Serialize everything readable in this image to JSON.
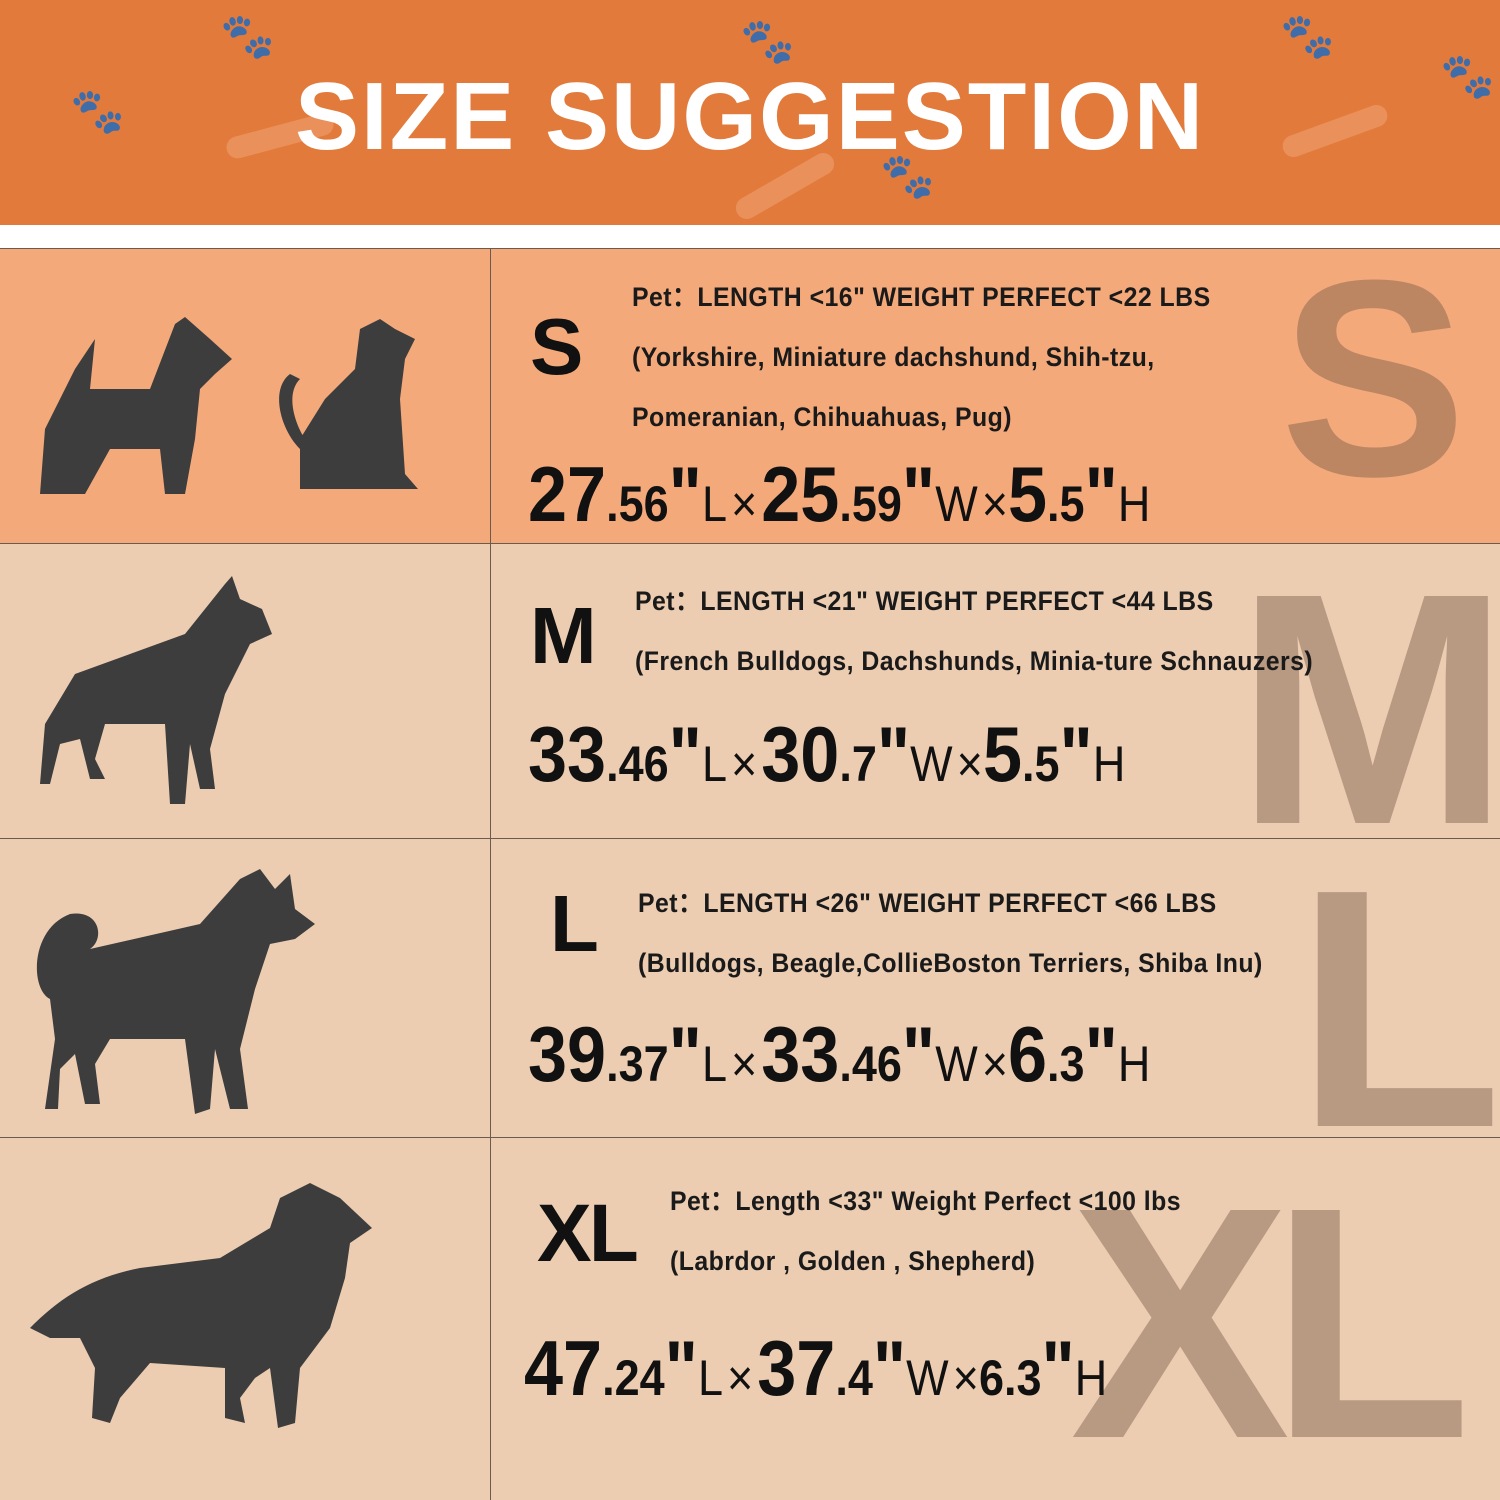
{
  "title": "SIZE SUGGESTION",
  "colors": {
    "header": "#E27A3C",
    "row_small": "#F4A97B",
    "row_other": "#EDCDB2",
    "silhouette": "#3d3d3d"
  },
  "sizes": [
    {
      "size": "S",
      "info": "Pet：LENGTH <16\"  WEIGHT PERFECT <22 LBS",
      "breeds": [
        "(Yorkshire, Miniature dachshund, Shih-tzu,",
        "Pomeranian, Chihuahuas, Pug)"
      ],
      "pets": [
        "dog-silhouette",
        "cat-silhouette"
      ],
      "dims": {
        "l_int": "27",
        "l_dec": ".56",
        "w_int": "25",
        "w_dec": ".59",
        "h_int": "5",
        "h_dec": ".5",
        "inch": "\"",
        "l": "L",
        "w": "W",
        "h": "H",
        "x": "×"
      }
    },
    {
      "size": "M",
      "info": "Pet：LENGTH <21\"  WEIGHT PERFECT <44 LBS",
      "breeds": [
        "(French Bulldogs, Dachshunds, Minia-ture Schnauzers)"
      ],
      "pets": [
        "dog-silhouette"
      ],
      "dims": {
        "l_int": "33",
        "l_dec": ".46",
        "w_int": "30",
        "w_dec": ".7",
        "h_int": "5",
        "h_dec": ".5",
        "inch": "\"",
        "l": "L",
        "w": "W",
        "h": "H",
        "x": "×"
      }
    },
    {
      "size": "L",
      "info": "Pet：LENGTH <26\" WEIGHT PERFECT <66 LBS",
      "breeds": [
        "(Bulldogs, Beagle,CollieBoston Terriers, Shiba Inu)"
      ],
      "pets": [
        "dog-silhouette"
      ],
      "dims": {
        "l_int": "39",
        "l_dec": ".37",
        "w_int": "33",
        "w_dec": ".46",
        "h_int": "6",
        "h_dec": ".3",
        "inch": "\"",
        "l": "L",
        "w": "W",
        "h": "H",
        "x": "×"
      }
    },
    {
      "size": "XL",
      "info": "Pet：Length <33\"  Weight Perfect <100 lbs",
      "breeds": [
        "(Labrdor , Golden ,  Shepherd)"
      ],
      "pets": [
        "dog-silhouette"
      ],
      "dims": {
        "l_int": "47",
        "l_dec": ".24",
        "w_int": "37",
        "w_dec": ".4",
        "h_int": "6.3",
        "h_dec": "",
        "inch": "\"",
        "l": "L",
        "w": "W",
        "h": "H",
        "x": "×"
      }
    }
  ]
}
